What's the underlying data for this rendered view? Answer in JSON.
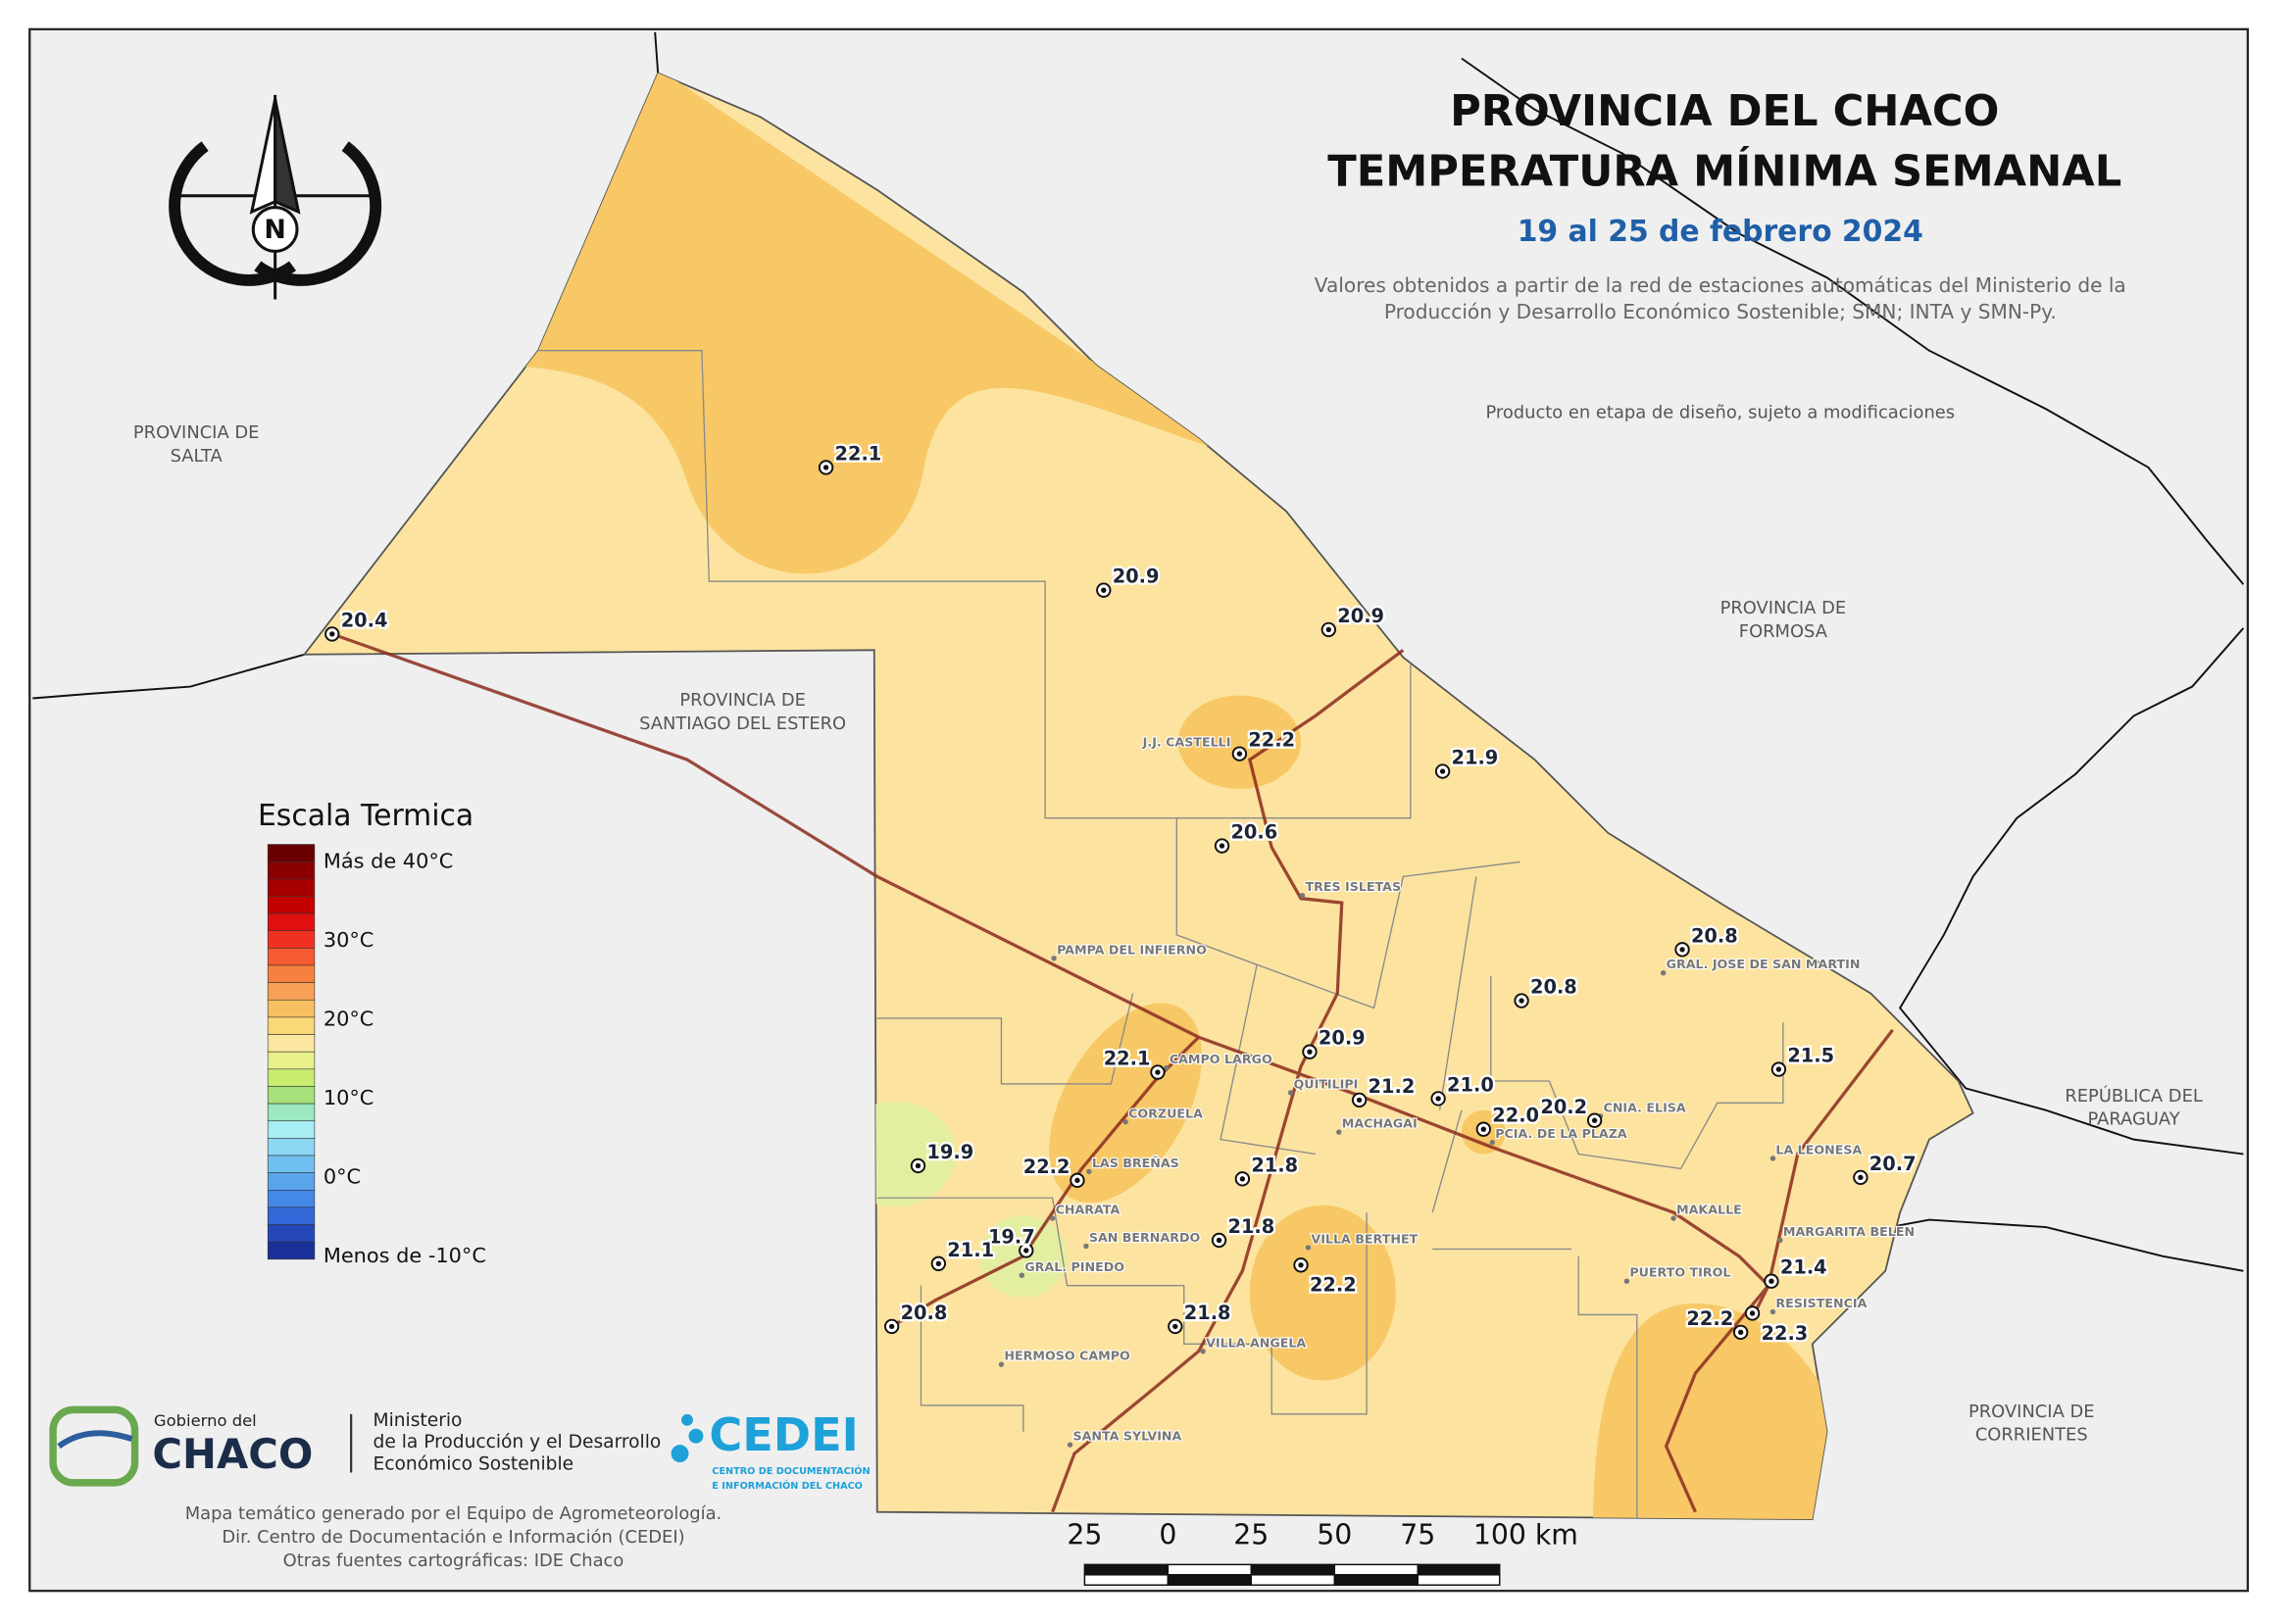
{
  "header": {
    "title_lines": [
      "PROVINCIA DEL CHACO",
      "TEMPERATURA MÍNIMA SEMANAL"
    ],
    "date": "19 al 25 de febrero 2024",
    "description_lines": [
      "Valores obtenidos a partir de la red de estaciones automáticas del Ministerio de la",
      "Producción y Desarrollo Económico Sostenible; SMN; INTA y SMN-Py."
    ],
    "note": "Producto en etapa de diseño, sujeto a modificaciones"
  },
  "compass": {
    "label": "N"
  },
  "regions": [
    {
      "lines": [
        "PROVINCIA DE",
        "SALTA"
      ]
    },
    {
      "lines": [
        "PROVINCIA DE",
        "FORMOSA"
      ]
    },
    {
      "lines": [
        "PROVINCIA DE",
        "SANTIAGO DEL ESTERO"
      ]
    },
    {
      "lines": [
        "REPÚBLICA DEL",
        "PARAGUAY"
      ]
    },
    {
      "lines": [
        "PROVINCIA DE",
        "CORRIENTES"
      ]
    }
  ],
  "stations": [
    "22.1",
    "20.9",
    "20.9",
    "20.4",
    "22.2",
    "21.9",
    "20.6",
    "20.8",
    "20.8",
    "20.9",
    "22.1",
    "21.2",
    "21.0",
    "22.0",
    "20.2",
    "21.5",
    "19.9",
    "22.2",
    "21.8",
    "20.7",
    "21.8",
    "19.7",
    "21.1",
    "22.2",
    "21.4",
    "21.8",
    "20.8",
    "22.2",
    "22.3"
  ],
  "cities": [
    "J.J. CASTELLI",
    "TRES ISLETAS",
    "PAMPA DEL INFIERNO",
    "GRAL. JOSE DE SAN MARTIN",
    "CAMPO LARGO",
    "QUITILIPI",
    "MACHAGAI",
    "PCIA. DE LA PLAZA",
    "CNIA. ELISA",
    "CORZUELA",
    "LAS BREÑAS",
    "LA LEONESA",
    "MAKALLE",
    "CHARATA",
    "SAN BERNARDO",
    "MARGARITA BELEN",
    "VILLA BERTHET",
    "GRAL. PINEDO",
    "PUERTO TIROL",
    "RESISTENCIA",
    "VILLA ANGELA",
    "HERMOSO CAMPO",
    "SANTA SYLVINA"
  ],
  "legend": {
    "title": "Escala Termica",
    "labels": [
      "Más de 40°C",
      "30°C",
      "20°C",
      "10°C",
      "0°C",
      "Menos de -10°C"
    ]
  },
  "scale_bar": {
    "labels": [
      "25",
      "0",
      "25",
      "50",
      "75",
      "100 km"
    ]
  },
  "logos": {
    "gov_small": "Gobierno del",
    "gov_big": "CHACO",
    "ministry_lines": [
      "Ministerio",
      "de la Producción y el Desarrollo",
      "Económico Sostenible"
    ],
    "cedei": "CEDEI",
    "cedei_sub": [
      "CENTRO DE DOCUMENTACIÓN",
      "E INFORMACIÓN DEL CHACO"
    ]
  },
  "credits": [
    "Mapa temático generado por el Equipo de Agrometeorología.",
    "Dir. Centro de Documentación e Información (CEDEI)",
    "Otras fuentes cartográficas: IDE Chaco"
  ]
}
